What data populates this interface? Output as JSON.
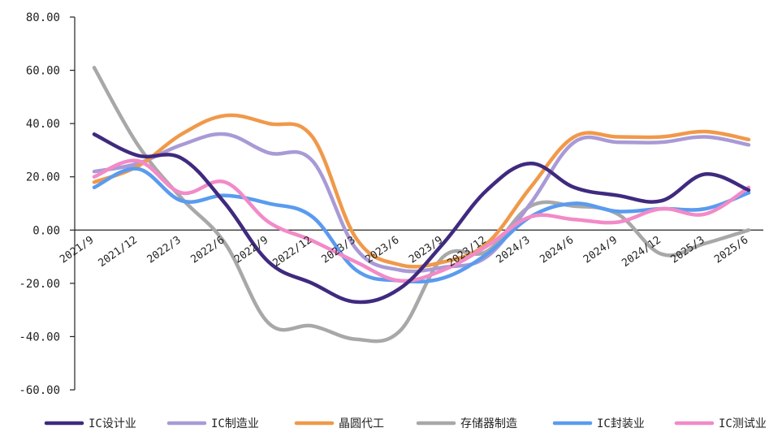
{
  "chart_data": {
    "type": "line",
    "title": "",
    "xlabel": "",
    "ylabel": "",
    "ylim": [
      -60,
      80
    ],
    "yticks": [
      "80.00",
      "60.00",
      "40.00",
      "20.00",
      "0.00",
      "-20.00",
      "-40.00",
      "-60.00"
    ],
    "categories": [
      "2021/9",
      "2021/12",
      "2022/3",
      "2022/6",
      "2022/9",
      "2022/12",
      "2023/3",
      "2023/6",
      "2023/9",
      "2023/12",
      "2024/3",
      "2024/6",
      "2024/9",
      "2024/12",
      "2025/3",
      "2025/6"
    ],
    "grid": false,
    "legend_position": "bottom",
    "series": [
      {
        "name": "IC设计业",
        "color": "#3f2a7f",
        "values": [
          36,
          28,
          27,
          10,
          -12,
          -20,
          -27,
          -22,
          -5,
          15,
          25,
          16,
          13,
          11,
          21,
          15
        ]
      },
      {
        "name": "IC制造业",
        "color": "#a99ad6",
        "values": [
          22,
          25,
          32,
          36,
          29,
          26,
          -7,
          -15,
          -14,
          -10,
          10,
          33,
          33,
          33,
          35,
          32
        ]
      },
      {
        "name": "晶圆代工",
        "color": "#f0994a",
        "values": [
          18,
          24,
          36,
          43,
          40,
          35,
          -3,
          -13,
          -12,
          -5,
          16,
          35,
          35,
          35,
          37,
          34
        ]
      },
      {
        "name": "存储器制造",
        "color": "#a8a8a8",
        "values": [
          61,
          32,
          12,
          -5,
          -35,
          -36,
          -41,
          -38,
          -10,
          -8,
          9,
          9,
          6,
          -9,
          -5,
          0
        ]
      },
      {
        "name": "IC封装业",
        "color": "#5a9bef",
        "values": [
          16,
          23,
          11,
          13,
          10,
          5,
          -15,
          -19,
          -18,
          -9,
          5,
          10,
          7,
          8,
          8,
          14
        ]
      },
      {
        "name": "IC测试业",
        "color": "#f28ac8",
        "values": [
          20,
          26,
          14,
          18,
          3,
          -4,
          -12,
          -19,
          -15,
          -6,
          5,
          4,
          3,
          8,
          6,
          16
        ]
      }
    ]
  }
}
